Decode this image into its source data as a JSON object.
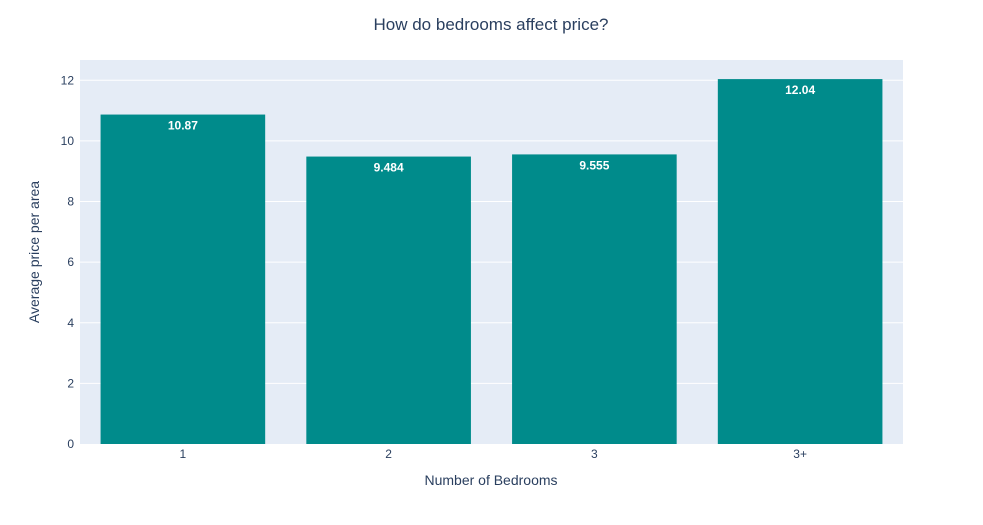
{
  "chart_data": {
    "type": "bar",
    "title": "How do bedrooms affect price?",
    "xlabel": "Number of Bedrooms",
    "ylabel": "Average price per area",
    "categories": [
      "1",
      "2",
      "3",
      "3+"
    ],
    "values": [
      10.87,
      9.484,
      9.555,
      12.04
    ],
    "value_labels": [
      "10.87",
      "9.484",
      "9.555",
      "12.04"
    ],
    "ylim": [
      0,
      12.67
    ],
    "yticks": [
      0,
      2,
      4,
      6,
      8,
      10,
      12
    ],
    "ytick_labels": [
      "0",
      "2",
      "4",
      "6",
      "8",
      "10",
      "12"
    ],
    "grid": true,
    "legend": "none",
    "colors": {
      "bar": "#008b8b",
      "plot_background": "#e5ecf6",
      "gridline": "#ffffff",
      "text": "#2a3f5f"
    }
  }
}
